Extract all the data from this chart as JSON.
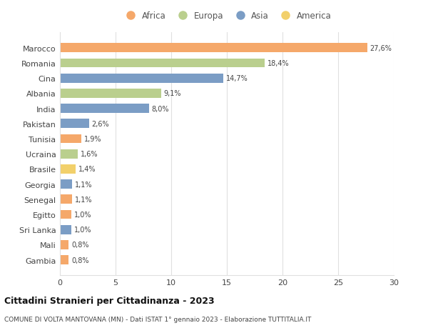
{
  "countries": [
    "Marocco",
    "Romania",
    "Cina",
    "Albania",
    "India",
    "Pakistan",
    "Tunisia",
    "Ucraina",
    "Brasile",
    "Georgia",
    "Senegal",
    "Egitto",
    "Sri Lanka",
    "Mali",
    "Gambia"
  ],
  "values": [
    27.6,
    18.4,
    14.7,
    9.1,
    8.0,
    2.6,
    1.9,
    1.6,
    1.4,
    1.1,
    1.1,
    1.0,
    1.0,
    0.8,
    0.8
  ],
  "labels": [
    "27,6%",
    "18,4%",
    "14,7%",
    "9,1%",
    "8,0%",
    "2,6%",
    "1,9%",
    "1,6%",
    "1,4%",
    "1,1%",
    "1,1%",
    "1,0%",
    "1,0%",
    "0,8%",
    "0,8%"
  ],
  "continents": [
    "Africa",
    "Europa",
    "Asia",
    "Europa",
    "Asia",
    "Asia",
    "Africa",
    "Europa",
    "America",
    "Asia",
    "Africa",
    "Africa",
    "Asia",
    "Africa",
    "Africa"
  ],
  "colors": {
    "Africa": "#F5A86A",
    "Europa": "#BACF8E",
    "Asia": "#7B9DC5",
    "America": "#F2D06B"
  },
  "legend_order": [
    "Africa",
    "Europa",
    "Asia",
    "America"
  ],
  "xlim": [
    0,
    30
  ],
  "xticks": [
    0,
    5,
    10,
    15,
    20,
    25,
    30
  ],
  "title": "Cittadini Stranieri per Cittadinanza - 2023",
  "subtitle": "COMUNE DI VOLTA MANTOVANA (MN) - Dati ISTAT 1° gennaio 2023 - Elaborazione TUTTITALIA.IT",
  "background_color": "#ffffff",
  "grid_color": "#e0e0e0"
}
